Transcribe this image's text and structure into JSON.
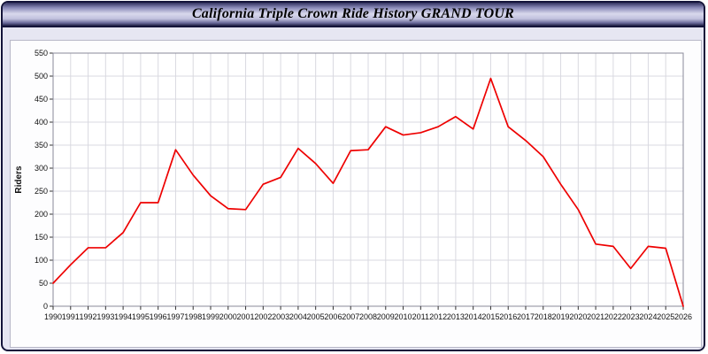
{
  "title": "California Triple Crown Ride History GRAND TOUR",
  "chart_data": {
    "type": "line",
    "title": "California Triple Crown Ride History GRAND TOUR",
    "xlabel": "",
    "ylabel": "Riders",
    "ylim": [
      0,
      550
    ],
    "y_tick_step": 50,
    "grid": true,
    "line_color": "#ee0000",
    "grid_color": "#d9d9e0",
    "x": [
      1990,
      1991,
      1992,
      1993,
      1994,
      1995,
      1996,
      1997,
      1998,
      1999,
      2000,
      2001,
      2002,
      2003,
      2004,
      2005,
      2006,
      2007,
      2008,
      2009,
      2010,
      2011,
      2012,
      2013,
      2014,
      2015,
      2016,
      2017,
      2018,
      2019,
      2020,
      2021,
      2022,
      2023,
      2024,
      2025,
      2026
    ],
    "values": [
      50,
      90,
      127,
      127,
      160,
      225,
      225,
      340,
      285,
      240,
      212,
      210,
      265,
      280,
      343,
      310,
      267,
      338,
      340,
      390,
      372,
      377,
      390,
      412,
      385,
      495,
      390,
      360,
      325,
      265,
      210,
      135,
      130,
      82,
      130,
      126,
      0
    ]
  }
}
